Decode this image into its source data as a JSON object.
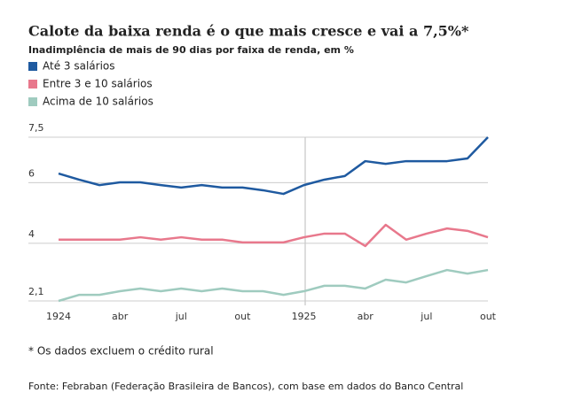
{
  "chart_data": {
    "type": "line",
    "title": "Calote da baixa renda é o que mais cresce e vai a 7,5%*",
    "subtitle": "Inadimplência de mais de 90 dias por faixa de renda, em %",
    "categories": [
      "1924",
      null,
      null,
      "abr",
      null,
      null,
      "jul",
      null,
      null,
      "out",
      null,
      null,
      "1925",
      null,
      null,
      "abr",
      null,
      null,
      "jul",
      null,
      null,
      "out"
    ],
    "series": [
      {
        "name": "Até 3 salários",
        "color": "#1f5aa0",
        "values": [
          6.3,
          6.1,
          5.92,
          6.01,
          6.01,
          5.92,
          5.84,
          5.92,
          5.84,
          5.84,
          5.75,
          5.63,
          5.92,
          6.1,
          6.22,
          6.71,
          6.62,
          6.71,
          6.71,
          6.71,
          6.8,
          7.5
        ]
      },
      {
        "name": "Entre 3 e 10 salários",
        "color": "#e8788c",
        "values": [
          4.12,
          4.12,
          4.12,
          4.12,
          4.2,
          4.12,
          4.2,
          4.12,
          4.12,
          4.03,
          4.03,
          4.03,
          4.2,
          4.32,
          4.32,
          3.91,
          4.61,
          4.12,
          4.32,
          4.49,
          4.41,
          4.2
        ]
      },
      {
        "name": "Acima de 10 salários",
        "color": "#9fcbbf",
        "values": [
          2.1,
          2.3,
          2.3,
          2.42,
          2.51,
          2.42,
          2.51,
          2.42,
          2.51,
          2.42,
          2.42,
          2.3,
          2.42,
          2.6,
          2.6,
          2.51,
          2.8,
          2.71,
          2.92,
          3.12,
          3.0,
          3.12
        ]
      }
    ],
    "ylim": [
      2.1,
      7.5
    ],
    "yticks": [
      {
        "value": 2.1,
        "label": "2,1"
      },
      4,
      6,
      {
        "value": 7.5,
        "label": "7,5"
      }
    ],
    "grid": true,
    "footnote": "* Os dados excluem o crédito rural",
    "source": "Fonte: Febraban (Federação Brasileira de Bancos), com base em dados do Banco Central"
  }
}
